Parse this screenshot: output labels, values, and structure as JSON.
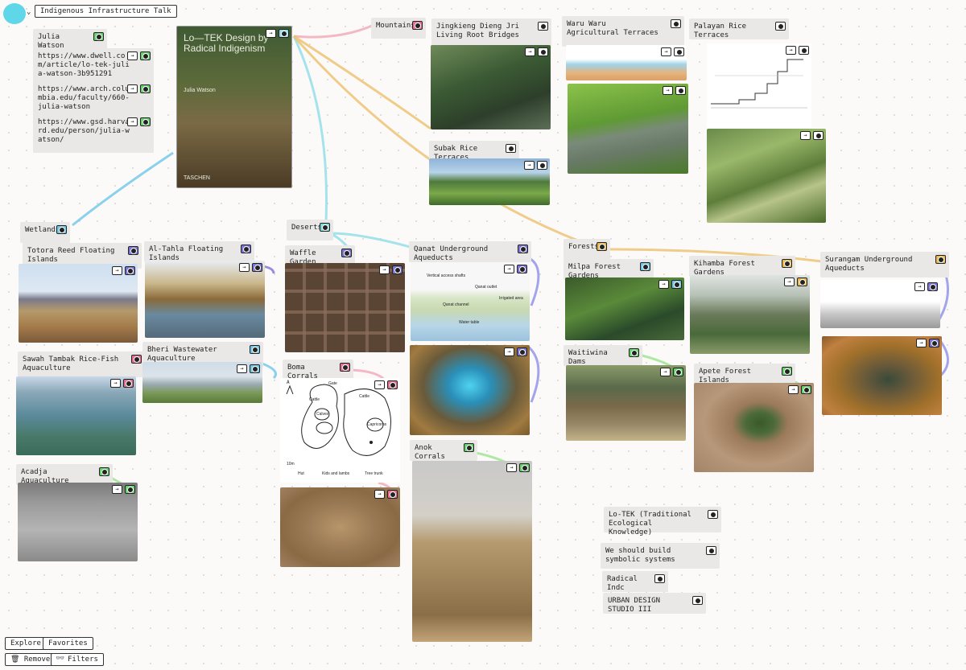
{
  "app": {
    "title": "Indigenous Infrastructure Talk"
  },
  "colors": {
    "green": "#63d36a",
    "pink": "#e86d8c",
    "blue": "#6ec7e8",
    "purple": "#7b73d9",
    "yellow": "#e8b84a",
    "cyan": "#7fd8d8"
  },
  "cards": {
    "julia": "Julia Watson",
    "url1": "https://www.dwell.com/article/lo-tek-julia-watson-3b951291",
    "url2": "https://www.arch.columbia.edu/faculty/660-julia-watson",
    "url3": "https://www.gsd.harvard.edu/person/julia-watson/",
    "book_title": "Lo—TEK Design by Radical Indigenism",
    "book_author": "Julia Watson",
    "book_publisher": "TASCHEN",
    "mountains": "Mountains",
    "jingkieng": "Jingkieng Dieng Jri Living Root Bridges",
    "waruwaru": "Waru Waru Agricultural Terraces",
    "palayan": "Palayan Rice Terraces",
    "subak": "Subak Rice Terraces",
    "wetlands": "Wetlands",
    "deserts": "Deserts",
    "totora": "Totora Reed Floating Islands",
    "altahla": "Al-Tahla Floating Islands",
    "waffle": "Waffle Garden",
    "qanat": "Qanat Underground Aqueducts",
    "forests": "Forests",
    "milpa": "Milpa Forest Gardens",
    "kihamba": "Kihamba Forest Gardens",
    "surangam": "Surangam Underground Aqueducts",
    "sawah": "Sawah Tambak Rice-Fish Aquaculture",
    "bheri": "Bheri Wastewater Aquaculture",
    "boma": "Boma Corrals",
    "waitiwina": "Waitiwina Dams",
    "apete": "Apete Forest Islands",
    "acadja": "Acadja Aquaculture",
    "anok": "Anok Corrals",
    "lotek": "Lo-TEK (Traditional Ecological Knowledge)",
    "symbolic": "We should build symbolic systems",
    "radical": "Radical Indc",
    "urban": "URBAN DESIGN STUDIO III"
  },
  "qanat_labels": {
    "shafts": "Vertical access shafts",
    "outlet": "Qanat outlet",
    "channel": "Qanat channel",
    "irrigated": "Irrigated area",
    "table": "Water table"
  },
  "boma_labels": {
    "north": "A",
    "gate": "Gate",
    "cattle": "Cattle",
    "calves": "Calves",
    "capricorns": "Capricorns",
    "legend_hut": "Hut",
    "legend_kids": "Kids and lambs",
    "legend_tree": "Tree trunk",
    "scale": "10m"
  },
  "icons": {
    "arrow": "→",
    "enter": "⇥"
  },
  "footer": {
    "explore": "Explore",
    "favorites": "Favorites",
    "removed": "🗑 Removed",
    "filters": "Filters"
  }
}
